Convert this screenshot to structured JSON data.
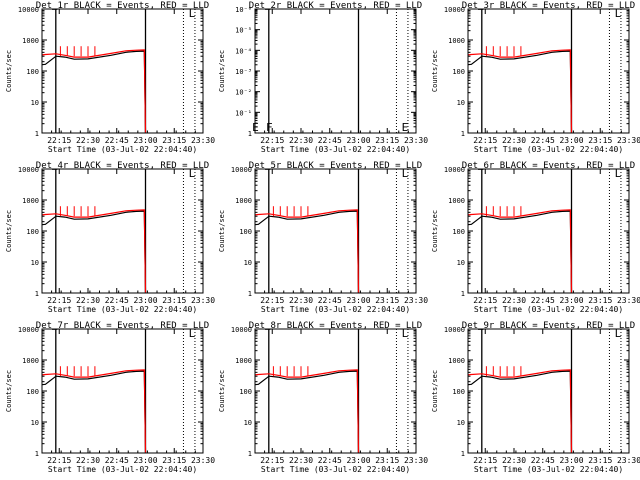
{
  "colors": {
    "events": "#000000",
    "lld": "#ff0000",
    "background": "#ffffff"
  },
  "chart_data": [
    {
      "type": "line",
      "detector": "Det_1r",
      "title": "Det_1r BLACK = Events, RED = LLD",
      "xlabel": "Start Time (03-Jul-02 22:04:40)",
      "ylabel": "Counts/sec",
      "xlim": [
        22.1,
        23.5
      ],
      "ylim": [
        1,
        10000
      ],
      "xticks": [
        "22:15",
        "22:30",
        "22:45",
        "23:00",
        "23:15",
        "23:30"
      ],
      "ytick_labels": [
        "1",
        "10",
        "100",
        "1000",
        "10000"
      ],
      "vlines": [
        22.22,
        23.0
      ],
      "vlines_dotted": [
        23.33,
        23.43
      ],
      "markers": [
        {
          "label": "L",
          "x": 23.43,
          "y": 10000
        }
      ],
      "series": [
        {
          "name": "Events",
          "color": "#000000",
          "x": [
            22.1,
            22.13,
            22.222,
            22.3,
            22.38,
            22.5,
            22.7,
            22.83,
            22.92,
            22.99,
            23.0
          ],
          "values": [
            160,
            165,
            300,
            280,
            240,
            245,
            320,
            400,
            430,
            440,
            1
          ]
        },
        {
          "name": "LLD",
          "color": "#ff0000",
          "x": [
            22.1,
            22.13,
            22.222,
            22.3,
            22.38,
            22.5,
            22.7,
            22.83,
            22.92,
            22.99,
            23.0
          ],
          "values": [
            330,
            340,
            360,
            320,
            280,
            280,
            370,
            450,
            470,
            480,
            1
          ]
        }
      ]
    },
    {
      "type": "line",
      "detector": "Det_2r",
      "title": "Det_2r BLACK = Events, RED = LLD",
      "xlabel": "Start Time (03-Jul-02 22:04:40)",
      "ylabel": "Counts/sec",
      "xlim": [
        22.1,
        23.5
      ],
      "ylim": [
        1,
        1e-06
      ],
      "xticks": [
        "22:15",
        "22:30",
        "22:45",
        "23:00",
        "23:15",
        "23:30"
      ],
      "ytick_labels": [
        "1",
        "10⁻¹",
        "10⁻²",
        "10⁻³",
        "10⁻⁴",
        "10⁻⁵",
        "10⁻⁶"
      ],
      "vlines": [
        22.22,
        23.0
      ],
      "vlines_dotted": [
        23.33,
        23.43
      ],
      "markers": [
        {
          "label": "E",
          "x": 22.13,
          "y": 1
        },
        {
          "label": "F",
          "x": 22.25,
          "y": 1
        },
        {
          "label": "E",
          "x": 23.43,
          "y": 1
        }
      ],
      "series": []
    },
    {
      "type": "line",
      "detector": "Det_3r",
      "title": "Det_3r BLACK = Events, RED = LLD",
      "xlabel": "Start Time (03-Jul-02 22:04:40)",
      "ylabel": "Counts/sec",
      "xlim": [
        22.1,
        23.5
      ],
      "ylim": [
        1,
        10000
      ],
      "xticks": [
        "22:15",
        "22:30",
        "22:45",
        "23:00",
        "23:15",
        "23:30"
      ],
      "ytick_labels": [
        "1",
        "10",
        "100",
        "1000",
        "10000"
      ],
      "vlines": [
        22.22,
        23.0
      ],
      "vlines_dotted": [
        23.33,
        23.43
      ],
      "markers": [
        {
          "label": "L",
          "x": 23.43,
          "y": 10000
        }
      ],
      "series": [
        {
          "name": "Events",
          "color": "#000000",
          "x": [
            22.1,
            22.13,
            22.222,
            22.3,
            22.38,
            22.5,
            22.7,
            22.83,
            22.92,
            22.99,
            23.0
          ],
          "values": [
            160,
            165,
            300,
            280,
            240,
            245,
            320,
            400,
            430,
            440,
            1
          ]
        },
        {
          "name": "LLD",
          "color": "#ff0000",
          "x": [
            22.1,
            22.13,
            22.222,
            22.3,
            22.38,
            22.5,
            22.7,
            22.83,
            22.92,
            22.99,
            23.0
          ],
          "values": [
            330,
            340,
            360,
            320,
            280,
            280,
            370,
            450,
            470,
            480,
            1
          ]
        }
      ]
    },
    {
      "type": "line",
      "detector": "Det_4r",
      "title": "Det_4r BLACK = Events, RED = LLD",
      "xlabel": "Start Time (03-Jul-02 22:04:40)",
      "ylabel": "Counts/sec",
      "xlim": [
        22.1,
        23.5
      ],
      "ylim": [
        1,
        10000
      ],
      "xticks": [
        "22:15",
        "22:30",
        "22:45",
        "23:00",
        "23:15",
        "23:30"
      ],
      "ytick_labels": [
        "1",
        "10",
        "100",
        "1000",
        "10000"
      ],
      "vlines": [
        22.22,
        23.0
      ],
      "vlines_dotted": [
        23.33,
        23.43
      ],
      "markers": [
        {
          "label": "L",
          "x": 23.43,
          "y": 10000
        }
      ],
      "series": [
        {
          "name": "Events",
          "color": "#000000",
          "x": [
            22.1,
            22.13,
            22.222,
            22.3,
            22.38,
            22.5,
            22.7,
            22.83,
            22.92,
            22.99,
            23.0
          ],
          "values": [
            160,
            165,
            300,
            280,
            240,
            245,
            320,
            400,
            430,
            440,
            1
          ]
        },
        {
          "name": "LLD",
          "color": "#ff0000",
          "x": [
            22.1,
            22.13,
            22.222,
            22.3,
            22.38,
            22.5,
            22.7,
            22.83,
            22.92,
            22.99,
            23.0
          ],
          "values": [
            330,
            340,
            360,
            320,
            280,
            280,
            370,
            450,
            470,
            480,
            1
          ]
        }
      ]
    },
    {
      "type": "line",
      "detector": "Det_5r",
      "title": "Det_5r BLACK = Events, RED = LLD",
      "xlabel": "Start Time (03-Jul-02 22:04:40)",
      "ylabel": "Counts/sec",
      "xlim": [
        22.1,
        23.5
      ],
      "ylim": [
        1,
        10000
      ],
      "xticks": [
        "22:15",
        "22:30",
        "22:45",
        "23:00",
        "23:15",
        "23:30"
      ],
      "ytick_labels": [
        "1",
        "10",
        "100",
        "1000",
        "10000"
      ],
      "vlines": [
        22.22,
        23.0
      ],
      "vlines_dotted": [
        23.33,
        23.43
      ],
      "markers": [
        {
          "label": "L",
          "x": 23.43,
          "y": 10000
        }
      ],
      "series": [
        {
          "name": "Events",
          "color": "#000000",
          "x": [
            22.1,
            22.13,
            22.222,
            22.3,
            22.38,
            22.5,
            22.7,
            22.83,
            22.92,
            22.99,
            23.0
          ],
          "values": [
            160,
            165,
            300,
            280,
            240,
            245,
            320,
            400,
            430,
            440,
            1
          ]
        },
        {
          "name": "LLD",
          "color": "#ff0000",
          "x": [
            22.1,
            22.13,
            22.222,
            22.3,
            22.38,
            22.5,
            22.7,
            22.83,
            22.92,
            22.99,
            23.0
          ],
          "values": [
            330,
            340,
            360,
            320,
            280,
            280,
            370,
            450,
            470,
            480,
            1
          ]
        }
      ]
    },
    {
      "type": "line",
      "detector": "Det_6r",
      "title": "Det_6r BLACK = Events, RED = LLD",
      "xlabel": "Start Time (03-Jul-02 22:04:40)",
      "ylabel": "Counts/sec",
      "xlim": [
        22.1,
        23.5
      ],
      "ylim": [
        1,
        10000
      ],
      "xticks": [
        "22:15",
        "22:30",
        "22:45",
        "23:00",
        "23:15",
        "23:30"
      ],
      "ytick_labels": [
        "1",
        "10",
        "100",
        "1000",
        "10000"
      ],
      "vlines": [
        22.22,
        23.0
      ],
      "vlines_dotted": [
        23.33,
        23.43
      ],
      "markers": [
        {
          "label": "L",
          "x": 23.43,
          "y": 10000
        }
      ],
      "series": [
        {
          "name": "Events",
          "color": "#000000",
          "x": [
            22.1,
            22.13,
            22.222,
            22.3,
            22.38,
            22.5,
            22.7,
            22.83,
            22.92,
            22.99,
            23.0
          ],
          "values": [
            160,
            165,
            300,
            280,
            240,
            245,
            320,
            400,
            430,
            440,
            1
          ]
        },
        {
          "name": "LLD",
          "color": "#ff0000",
          "x": [
            22.1,
            22.13,
            22.222,
            22.3,
            22.38,
            22.5,
            22.7,
            22.83,
            22.92,
            22.99,
            23.0
          ],
          "values": [
            330,
            340,
            360,
            320,
            280,
            280,
            370,
            450,
            470,
            480,
            1
          ]
        }
      ]
    },
    {
      "type": "line",
      "detector": "Det_7r",
      "title": "Det_7r BLACK = Events, RED = LLD",
      "xlabel": "Start Time (03-Jul-02 22:04:40)",
      "ylabel": "Counts/sec",
      "xlim": [
        22.1,
        23.5
      ],
      "ylim": [
        1,
        10000
      ],
      "xticks": [
        "22:15",
        "22:30",
        "22:45",
        "23:00",
        "23:15",
        "23:30"
      ],
      "ytick_labels": [
        "1",
        "10",
        "100",
        "1000",
        "10000"
      ],
      "vlines": [
        22.22,
        23.0
      ],
      "vlines_dotted": [
        23.33,
        23.43
      ],
      "markers": [
        {
          "label": "L",
          "x": 23.43,
          "y": 10000
        }
      ],
      "series": [
        {
          "name": "Events",
          "color": "#000000",
          "x": [
            22.1,
            22.13,
            22.222,
            22.3,
            22.38,
            22.5,
            22.7,
            22.83,
            22.92,
            22.99,
            23.0
          ],
          "values": [
            160,
            165,
            300,
            280,
            240,
            245,
            320,
            400,
            430,
            440,
            1
          ]
        },
        {
          "name": "LLD",
          "color": "#ff0000",
          "x": [
            22.1,
            22.13,
            22.222,
            22.3,
            22.38,
            22.5,
            22.7,
            22.83,
            22.92,
            22.99,
            23.0
          ],
          "values": [
            330,
            340,
            360,
            320,
            280,
            280,
            370,
            450,
            470,
            480,
            1
          ]
        }
      ]
    },
    {
      "type": "line",
      "detector": "Det_8r",
      "title": "Det_8r BLACK = Events, RED = LLD",
      "xlabel": "Start Time (03-Jul-02 22:04:40)",
      "ylabel": "Counts/sec",
      "xlim": [
        22.1,
        23.5
      ],
      "ylim": [
        1,
        10000
      ],
      "xticks": [
        "22:15",
        "22:30",
        "22:45",
        "23:00",
        "23:15",
        "23:30"
      ],
      "ytick_labels": [
        "1",
        "10",
        "100",
        "1000",
        "10000"
      ],
      "vlines": [
        22.22,
        23.0
      ],
      "vlines_dotted": [
        23.33,
        23.43
      ],
      "markers": [
        {
          "label": "L",
          "x": 23.43,
          "y": 10000
        }
      ],
      "series": [
        {
          "name": "Events",
          "color": "#000000",
          "x": [
            22.1,
            22.13,
            22.222,
            22.3,
            22.38,
            22.5,
            22.7,
            22.83,
            22.92,
            22.99,
            23.0
          ],
          "values": [
            160,
            165,
            300,
            280,
            240,
            245,
            320,
            400,
            430,
            440,
            1
          ]
        },
        {
          "name": "LLD",
          "color": "#ff0000",
          "x": [
            22.1,
            22.13,
            22.222,
            22.3,
            22.38,
            22.5,
            22.7,
            22.83,
            22.92,
            22.99,
            23.0
          ],
          "values": [
            330,
            340,
            360,
            320,
            280,
            280,
            370,
            450,
            470,
            480,
            1
          ]
        }
      ]
    },
    {
      "type": "line",
      "detector": "Det_9r",
      "title": "Det_9r BLACK = Events, RED = LLD",
      "xlabel": "Start Time (03-Jul-02 22:04:40)",
      "ylabel": "Counts/sec",
      "xlim": [
        22.1,
        23.5
      ],
      "ylim": [
        1,
        10000
      ],
      "xticks": [
        "22:15",
        "22:30",
        "22:45",
        "23:00",
        "23:15",
        "23:30"
      ],
      "ytick_labels": [
        "1",
        "10",
        "100",
        "1000",
        "10000"
      ],
      "vlines": [
        22.22,
        23.0
      ],
      "vlines_dotted": [
        23.33,
        23.43
      ],
      "markers": [
        {
          "label": "L",
          "x": 23.43,
          "y": 10000
        }
      ],
      "series": [
        {
          "name": "Events",
          "color": "#000000",
          "x": [
            22.1,
            22.13,
            22.222,
            22.3,
            22.38,
            22.5,
            22.7,
            22.83,
            22.92,
            22.99,
            23.0
          ],
          "values": [
            160,
            165,
            300,
            280,
            240,
            245,
            320,
            400,
            430,
            440,
            1
          ]
        },
        {
          "name": "LLD",
          "color": "#ff0000",
          "x": [
            22.1,
            22.13,
            22.222,
            22.3,
            22.38,
            22.5,
            22.7,
            22.83,
            22.92,
            22.99,
            23.0
          ],
          "values": [
            330,
            340,
            360,
            320,
            280,
            280,
            370,
            450,
            470,
            480,
            1
          ]
        }
      ]
    }
  ]
}
